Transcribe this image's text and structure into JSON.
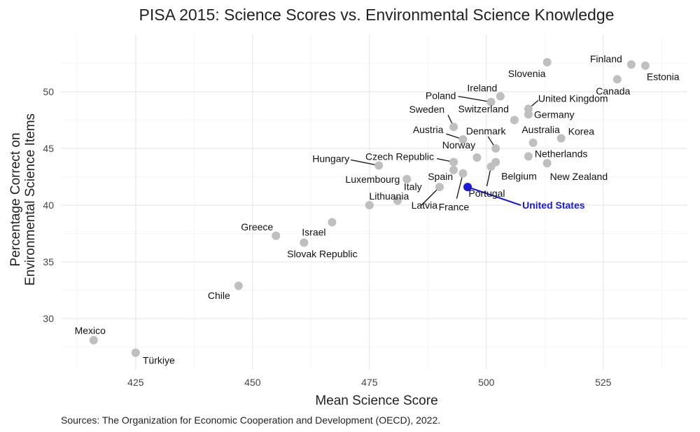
{
  "chart_data": {
    "type": "scatter",
    "title": "PISA 2015: Science Scores vs. Environmental Science Knowledge",
    "xlabel": "Mean Science Score",
    "ylabel_lines": [
      "Percentage Correct on",
      "Environmental Science Items"
    ],
    "source": "Sources: The Organization for Economic Cooperation and Development (OECD), 2022.",
    "xlim": [
      409,
      543
    ],
    "ylim": [
      25.5,
      55
    ],
    "xticks": [
      425,
      450,
      475,
      500,
      525
    ],
    "yticks": [
      30,
      35,
      40,
      45,
      50
    ],
    "grid": true,
    "point_color": "#bfbfbf",
    "highlight_color": "#1a1adb",
    "points": [
      {
        "label": "Mexico",
        "x": 416,
        "y": 28.1
      },
      {
        "label": "Türkiye",
        "x": 425,
        "y": 27.0
      },
      {
        "label": "Chile",
        "x": 447,
        "y": 32.9
      },
      {
        "label": "Greece",
        "x": 455,
        "y": 37.3
      },
      {
        "label": "Slovak Republic",
        "x": 461,
        "y": 36.7
      },
      {
        "label": "Israel",
        "x": 467,
        "y": 38.5
      },
      {
        "label": "Lithuania",
        "x": 475,
        "y": 40.0
      },
      {
        "label": "Latvia",
        "x": 490,
        "y": 41.6
      },
      {
        "label": "Italy",
        "x": 481,
        "y": 40.4
      },
      {
        "label": "Luxembourg",
        "x": 483,
        "y": 42.3
      },
      {
        "label": "Hungary",
        "x": 477,
        "y": 43.5
      },
      {
        "label": "Czech Republic",
        "x": 493,
        "y": 43.8
      },
      {
        "label": "Spain",
        "x": 493,
        "y": 43.1
      },
      {
        "label": "France",
        "x": 495,
        "y": 42.8
      },
      {
        "label": "Portugal",
        "x": 501,
        "y": 43.4
      },
      {
        "label": "Austria",
        "x": 495,
        "y": 45.8
      },
      {
        "label": "Sweden",
        "x": 493,
        "y": 46.9
      },
      {
        "label": "Norway",
        "x": 498,
        "y": 44.2
      },
      {
        "label": "Denmark",
        "x": 502,
        "y": 45.0
      },
      {
        "label": "Belgium",
        "x": 502,
        "y": 43.8
      },
      {
        "label": "Switzerland",
        "x": 506,
        "y": 47.5
      },
      {
        "label": "Poland",
        "x": 501,
        "y": 49.1
      },
      {
        "label": "Ireland",
        "x": 503,
        "y": 49.6
      },
      {
        "label": "United Kingdom",
        "x": 509,
        "y": 48.5
      },
      {
        "label": "Germany",
        "x": 509,
        "y": 48.0
      },
      {
        "label": "Australia",
        "x": 510,
        "y": 45.5
      },
      {
        "label": "Netherlands",
        "x": 509,
        "y": 44.3
      },
      {
        "label": "New Zealand",
        "x": 513,
        "y": 43.7
      },
      {
        "label": "Korea",
        "x": 516,
        "y": 45.9
      },
      {
        "label": "Slovenia",
        "x": 513,
        "y": 52.6
      },
      {
        "label": "Canada",
        "x": 528,
        "y": 51.1
      },
      {
        "label": "Finland",
        "x": 531,
        "y": 52.4
      },
      {
        "label": "Estonia",
        "x": 534,
        "y": 52.3
      },
      {
        "label": "United States",
        "x": 496,
        "y": 41.6,
        "highlight": true
      }
    ]
  }
}
